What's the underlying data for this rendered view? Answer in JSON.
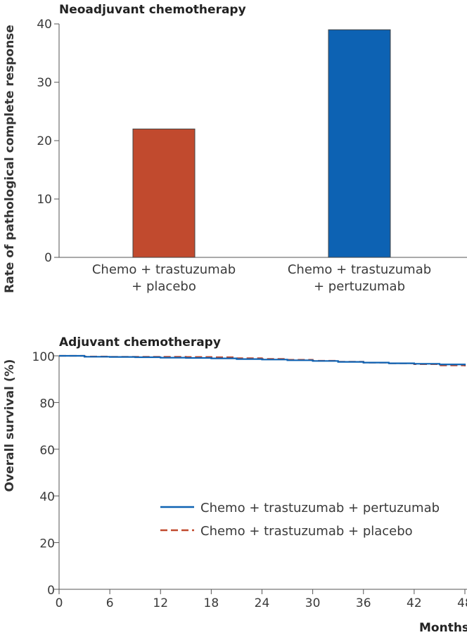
{
  "chart_data": [
    {
      "type": "bar",
      "title": "Neoadjuvant chemotherapy",
      "ylabel": "Rate of pathological complete response",
      "xlabel": "",
      "ylim": [
        0,
        40
      ],
      "yticks": [
        0,
        10,
        20,
        30,
        40
      ],
      "categories": [
        [
          "Chemo + trastuzumab",
          "+ placebo"
        ],
        [
          "Chemo + trastuzumab",
          "+ pertuzumab"
        ]
      ],
      "values": [
        22,
        39
      ],
      "colors": [
        "#c14a2e",
        "#0d62b3"
      ]
    },
    {
      "type": "line",
      "title": "Adjuvant chemotherapy",
      "ylabel": "Overall survival (%)",
      "xlabel": "Months",
      "xlim": [
        0,
        48
      ],
      "ylim": [
        0,
        100
      ],
      "xticks": [
        0,
        6,
        12,
        18,
        24,
        30,
        36,
        42,
        48
      ],
      "yticks": [
        0,
        20,
        40,
        60,
        80,
        100
      ],
      "series": [
        {
          "name": "Chemo + trastuzumab + pertuzumab",
          "color": "#0d62b3",
          "style": "solid",
          "x": [
            0,
            3,
            6,
            9,
            12,
            15,
            18,
            21,
            24,
            27,
            30,
            33,
            36,
            39,
            42,
            45,
            48
          ],
          "y": [
            100,
            99.6,
            99.5,
            99.4,
            99.2,
            99.1,
            98.9,
            98.6,
            98.4,
            98.1,
            97.8,
            97.4,
            97.1,
            96.8,
            96.6,
            96.3,
            95.9
          ]
        },
        {
          "name": "Chemo + trastuzumab + placebo",
          "color": "#c14a2e",
          "style": "dashed",
          "x": [
            0,
            3,
            6,
            9,
            12,
            15,
            18,
            21,
            24,
            27,
            30,
            33,
            36,
            39,
            42,
            45,
            48
          ],
          "y": [
            100,
            99.7,
            99.6,
            99.6,
            99.6,
            99.5,
            99.4,
            99.0,
            98.7,
            98.3,
            97.9,
            97.5,
            97.1,
            96.8,
            96.4,
            95.9,
            95.5
          ]
        }
      ]
    }
  ]
}
